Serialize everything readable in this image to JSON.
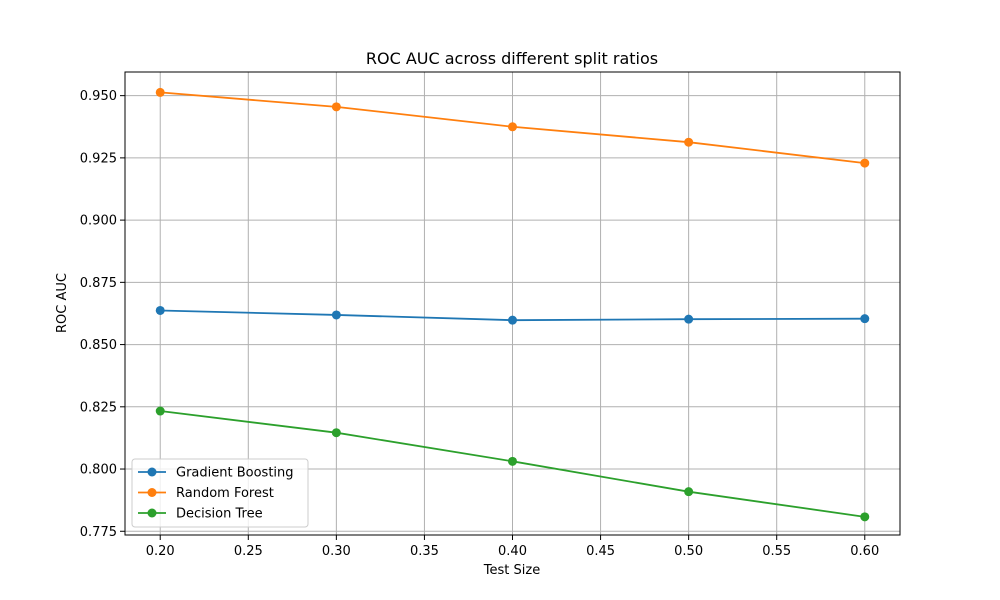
{
  "chart_data": {
    "type": "line",
    "title": "ROC AUC across different split ratios",
    "xlabel": "Test Size",
    "ylabel": "ROC AUC",
    "x": [
      0.2,
      0.3,
      0.4,
      0.5,
      0.6
    ],
    "xlim": [
      0.18,
      0.62
    ],
    "ylim": [
      0.7735,
      0.9595
    ],
    "xticks": [
      0.2,
      0.25,
      0.3,
      0.35,
      0.4,
      0.45,
      0.5,
      0.55,
      0.6
    ],
    "xtick_labels": [
      "0.20",
      "0.25",
      "0.30",
      "0.35",
      "0.40",
      "0.45",
      "0.50",
      "0.55",
      "0.60"
    ],
    "yticks": [
      0.775,
      0.8,
      0.825,
      0.85,
      0.875,
      0.9,
      0.925,
      0.95
    ],
    "ytick_labels": [
      "0.775",
      "0.800",
      "0.825",
      "0.850",
      "0.875",
      "0.900",
      "0.925",
      "0.950"
    ],
    "grid": true,
    "legend_position": "lower-left",
    "series": [
      {
        "name": "Gradient Boosting",
        "color": "#1f77b4",
        "values": [
          0.8637,
          0.8619,
          0.8598,
          0.8602,
          0.8604
        ]
      },
      {
        "name": "Random Forest",
        "color": "#ff7f0e",
        "values": [
          0.9513,
          0.9455,
          0.9375,
          0.9313,
          0.9229
        ]
      },
      {
        "name": "Decision Tree",
        "color": "#2ca02c",
        "values": [
          0.8233,
          0.8146,
          0.8031,
          0.7909,
          0.7808
        ]
      }
    ]
  }
}
